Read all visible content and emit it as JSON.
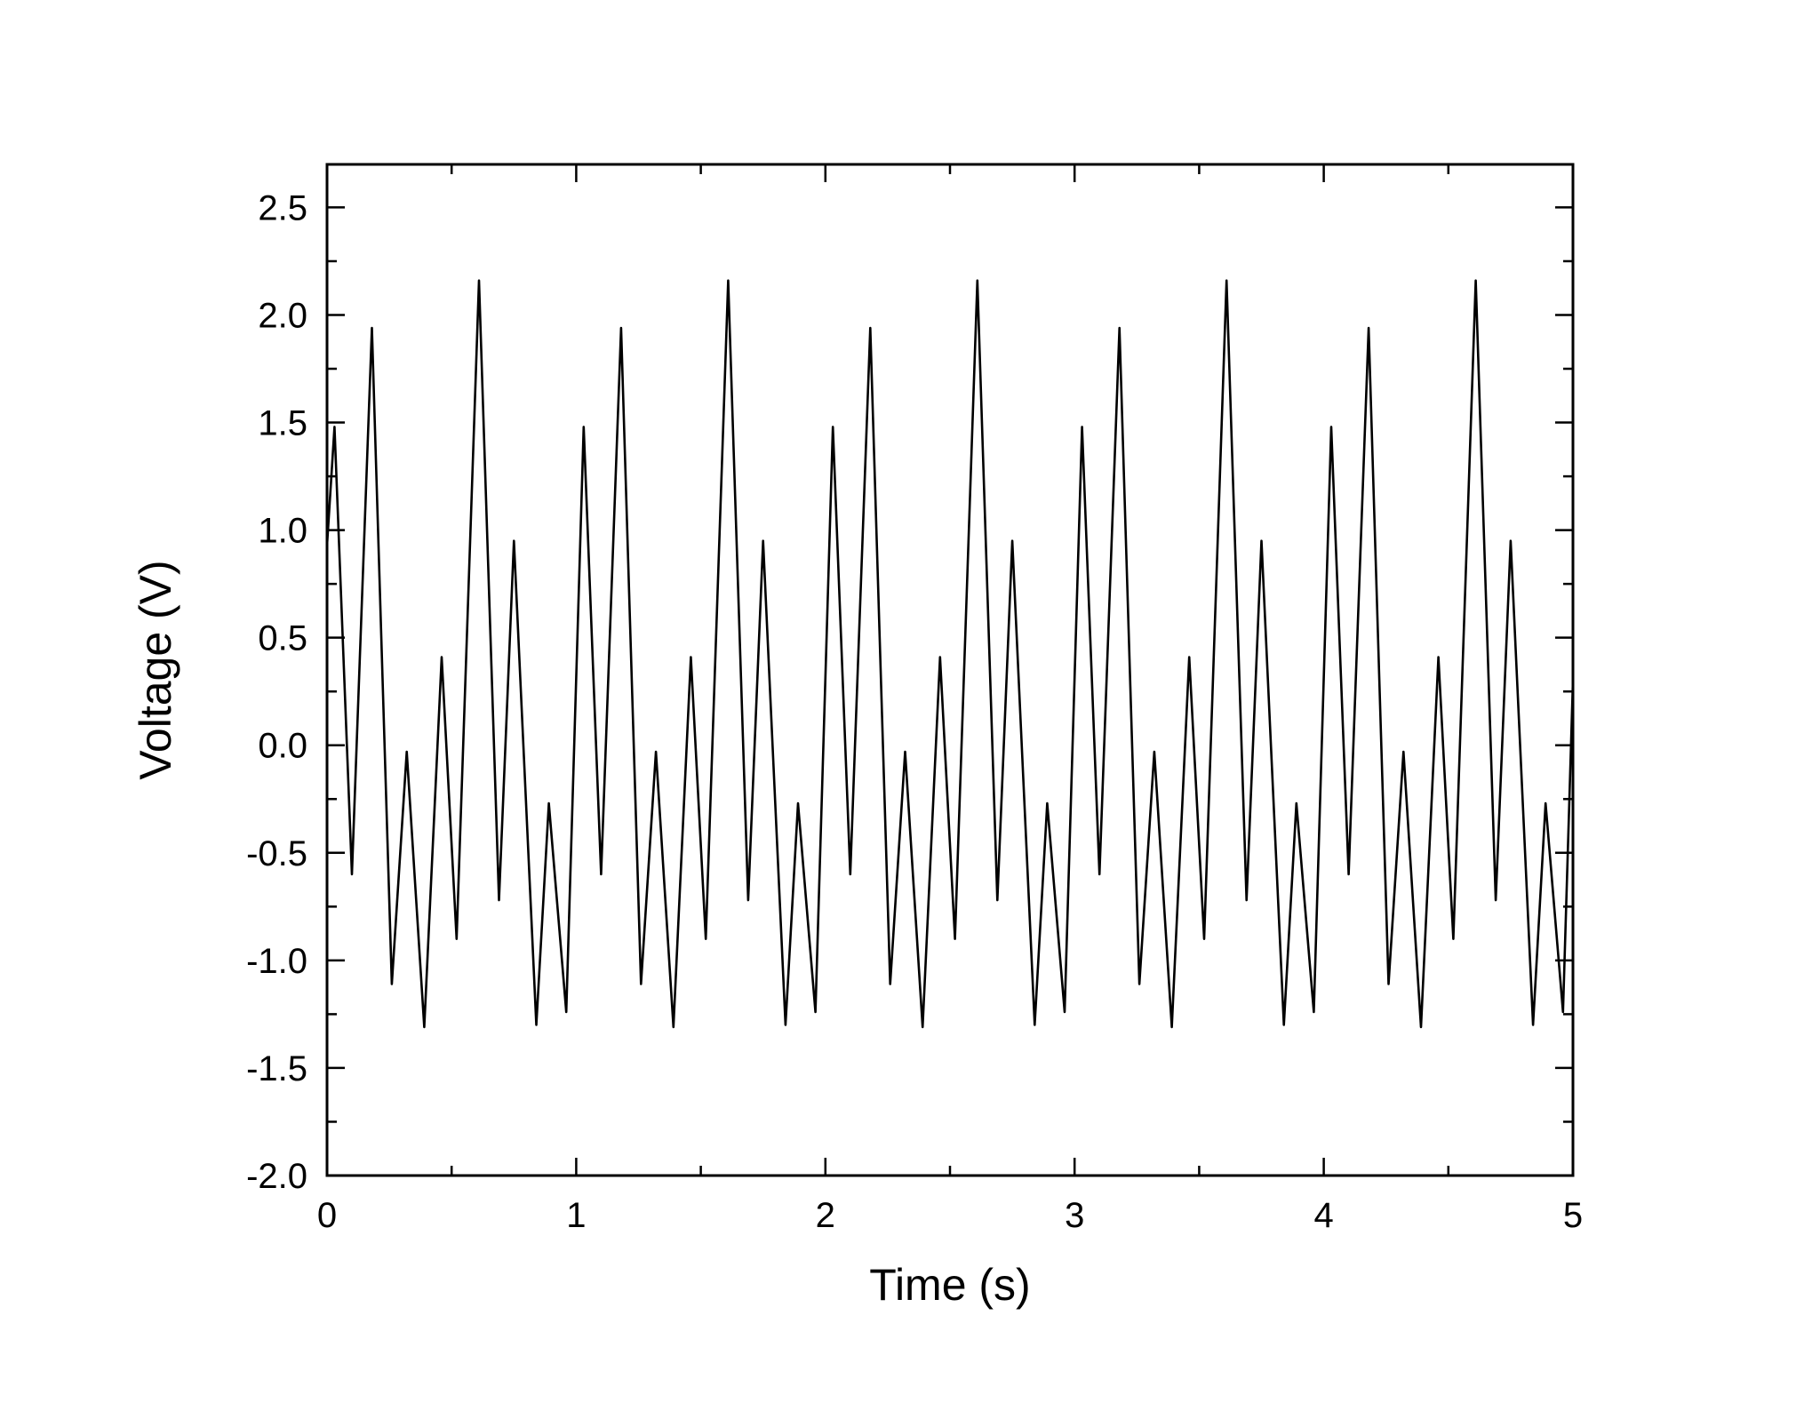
{
  "chart_data": {
    "type": "line",
    "title": "",
    "xlabel": "Time (s)",
    "ylabel": "Voltage (V)",
    "xlim": [
      0,
      5
    ],
    "ylim": [
      -2.0,
      2.7
    ],
    "x_ticks": [
      0,
      1,
      2,
      3,
      4,
      5
    ],
    "x_tick_labels": [
      "0",
      "1",
      "2",
      "3",
      "4",
      "5"
    ],
    "x_minor_step": 0.5,
    "y_ticks": [
      -2.0,
      -1.5,
      -1.0,
      -0.5,
      0.0,
      0.5,
      1.0,
      1.5,
      2.0,
      2.5
    ],
    "y_tick_labels": [
      "-2.0",
      "-1.5",
      "-1.0",
      "-0.5",
      "0.0",
      "0.5",
      "1.0",
      "1.5",
      "2.0",
      "2.5"
    ],
    "y_minor_step": 0.25,
    "grid": false,
    "legend": "none",
    "line_color": "#000000",
    "series": [
      {
        "name": "",
        "x": [
          0.0,
          0.03,
          0.1,
          0.18,
          0.26,
          0.32,
          0.39,
          0.46,
          0.52,
          0.61,
          0.69,
          0.75,
          0.84,
          0.89,
          0.96,
          1.03,
          1.1,
          1.18,
          1.26,
          1.32,
          1.39,
          1.46,
          1.52,
          1.61,
          1.69,
          1.75,
          1.84,
          1.89,
          1.96,
          2.03,
          2.1,
          2.18,
          2.26,
          2.32,
          2.39,
          2.46,
          2.52,
          2.61,
          2.69,
          2.75,
          2.84,
          2.89,
          2.96,
          3.03,
          3.1,
          3.18,
          3.26,
          3.32,
          3.39,
          3.46,
          3.52,
          3.61,
          3.69,
          3.75,
          3.84,
          3.89,
          3.96,
          4.03,
          4.1,
          4.18,
          4.26,
          4.32,
          4.39,
          4.46,
          4.52,
          4.61,
          4.69,
          4.75,
          4.84,
          4.89,
          4.96,
          5.0
        ],
        "y": [
          0.93,
          1.48,
          -0.6,
          1.94,
          -1.11,
          -0.03,
          -1.31,
          0.41,
          -0.9,
          2.16,
          -0.72,
          0.95,
          -1.3,
          -0.27,
          -1.24,
          1.48,
          -0.6,
          1.94,
          -1.11,
          -0.03,
          -1.31,
          0.41,
          -0.9,
          2.16,
          -0.72,
          0.95,
          -1.3,
          -0.27,
          -1.24,
          1.48,
          -0.6,
          1.94,
          -1.11,
          -0.03,
          -1.31,
          0.41,
          -0.9,
          2.16,
          -0.72,
          0.95,
          -1.3,
          -0.27,
          -1.24,
          1.48,
          -0.6,
          1.94,
          -1.11,
          -0.03,
          -1.31,
          0.41,
          -0.9,
          2.16,
          -0.72,
          0.95,
          -1.3,
          -0.27,
          -1.24,
          1.48,
          -0.6,
          1.94,
          -1.11,
          -0.03,
          -1.31,
          0.41,
          -0.9,
          2.16,
          -0.72,
          0.95,
          -1.3,
          -0.27,
          -1.24,
          0.3
        ]
      }
    ]
  }
}
